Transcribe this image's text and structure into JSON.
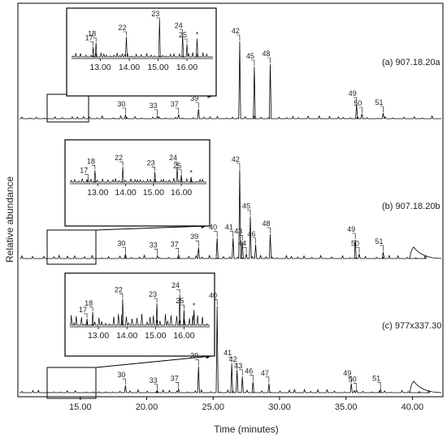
{
  "chart_data": {
    "type": "line",
    "xlabel": "Time (minutes)",
    "ylabel": "Relative abundance",
    "xlim": [
      10.3,
      42.3
    ],
    "x_ticks": [
      "15.00",
      "20.00",
      "25.00",
      "30.00",
      "35.00",
      "40.00"
    ],
    "x_tick_values": [
      15,
      20,
      25,
      30,
      35,
      40
    ],
    "inset_ticks": [
      "13.00",
      "14.00",
      "15.00",
      "16.00"
    ],
    "inset_tick_values": [
      13,
      14,
      15,
      16
    ],
    "series": [
      {
        "name": "(a) 907.18.20a",
        "peaks": [
          {
            "label": "30",
            "x": 18.4,
            "y": 0.05
          },
          {
            "label": "33",
            "x": 20.8,
            "y": 0.03
          },
          {
            "label": "37",
            "x": 22.4,
            "y": 0.05
          },
          {
            "label": "39",
            "x": 23.9,
            "y": 0.12
          },
          {
            "label": "42",
            "x": 27.0,
            "y": 0.95
          },
          {
            "label": "45",
            "x": 28.1,
            "y": 0.64
          },
          {
            "label": "48",
            "x": 29.3,
            "y": 0.67
          },
          {
            "label": "49",
            "x": 35.8,
            "y": 0.18
          },
          {
            "label": "50",
            "x": 36.2,
            "y": 0.06
          },
          {
            "label": "51",
            "x": 37.8,
            "y": 0.07
          }
        ],
        "inset_peaks": [
          {
            "label": "17",
            "x": 12.75,
            "y": 0.25
          },
          {
            "label": "18",
            "x": 12.85,
            "y": 0.35
          },
          {
            "label": "22",
            "x": 13.9,
            "y": 0.5
          },
          {
            "label": "23",
            "x": 15.05,
            "y": 0.95
          },
          {
            "label": "24",
            "x": 15.85,
            "y": 0.55
          },
          {
            "label": "25",
            "x": 16.0,
            "y": 0.32
          },
          {
            "label": "*",
            "x": 16.35,
            "y": 0.45
          }
        ]
      },
      {
        "name": "(b) 907.18.20b",
        "peaks": [
          {
            "label": "30",
            "x": 18.4,
            "y": 0.05
          },
          {
            "label": "33",
            "x": 20.8,
            "y": 0.03
          },
          {
            "label": "37",
            "x": 22.4,
            "y": 0.04
          },
          {
            "label": "39",
            "x": 23.9,
            "y": 0.12
          },
          {
            "label": "40",
            "x": 25.3,
            "y": 0.22
          },
          {
            "label": "41",
            "x": 26.5,
            "y": 0.22
          },
          {
            "label": "42",
            "x": 27.0,
            "y": 0.95
          },
          {
            "label": "43",
            "x": 27.2,
            "y": 0.18
          },
          {
            "label": "44",
            "x": 27.5,
            "y": 0.05
          },
          {
            "label": "45",
            "x": 27.8,
            "y": 0.45
          },
          {
            "label": "46",
            "x": 28.2,
            "y": 0.15
          },
          {
            "label": "48",
            "x": 29.3,
            "y": 0.26
          },
          {
            "label": "49",
            "x": 35.7,
            "y": 0.2
          },
          {
            "label": "50",
            "x": 36.0,
            "y": 0.05
          },
          {
            "label": "51",
            "x": 37.8,
            "y": 0.07
          }
        ],
        "inset_peaks": [
          {
            "label": "17",
            "x": 12.65,
            "y": 0.08
          },
          {
            "label": "18",
            "x": 12.9,
            "y": 0.35
          },
          {
            "label": "22",
            "x": 13.9,
            "y": 0.45
          },
          {
            "label": "23",
            "x": 15.05,
            "y": 0.3
          },
          {
            "label": "24",
            "x": 15.85,
            "y": 0.45
          },
          {
            "label": "25",
            "x": 16.0,
            "y": 0.22
          },
          {
            "label": "*",
            "x": 16.35,
            "y": 0.15
          }
        ]
      },
      {
        "name": "(c) 977x337.30",
        "peaks": [
          {
            "label": "30",
            "x": 18.4,
            "y": 0.08
          },
          {
            "label": "33",
            "x": 20.8,
            "y": 0.02
          },
          {
            "label": "37",
            "x": 22.4,
            "y": 0.04
          },
          {
            "label": "39",
            "x": 23.9,
            "y": 0.29
          },
          {
            "label": "40",
            "x": 25.3,
            "y": 0.95
          },
          {
            "label": "41",
            "x": 26.4,
            "y": 0.32
          },
          {
            "label": "42",
            "x": 26.8,
            "y": 0.25
          },
          {
            "label": "43",
            "x": 27.2,
            "y": 0.18
          },
          {
            "label": "46",
            "x": 28.0,
            "y": 0.12
          },
          {
            "label": "47",
            "x": 29.2,
            "y": 0.1
          },
          {
            "label": "49",
            "x": 35.4,
            "y": 0.1
          },
          {
            "label": "50",
            "x": 35.8,
            "y": 0.03
          },
          {
            "label": "51",
            "x": 37.6,
            "y": 0.04
          }
        ],
        "inset_peaks": [
          {
            "label": "17",
            "x": 12.6,
            "y": 0.15
          },
          {
            "label": "18",
            "x": 12.8,
            "y": 0.3
          },
          {
            "label": "22",
            "x": 13.85,
            "y": 0.6
          },
          {
            "label": "23",
            "x": 15.05,
            "y": 0.5
          },
          {
            "label": "24",
            "x": 15.85,
            "y": 0.7
          },
          {
            "label": "25",
            "x": 16.0,
            "y": 0.35
          },
          {
            "label": "*",
            "x": 16.35,
            "y": 0.35
          }
        ]
      }
    ]
  }
}
